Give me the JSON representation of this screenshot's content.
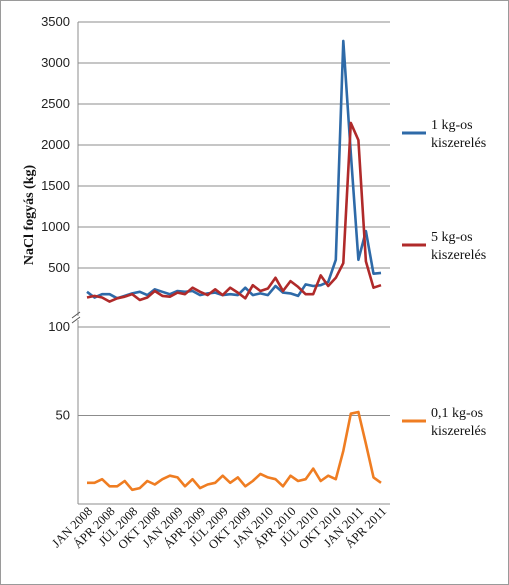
{
  "chart_data": {
    "type": "line",
    "ylabel": "NaCl fogyás (kg)",
    "categories": [
      "JAN 2008",
      "FEB 2008",
      "MÁR 2008",
      "ÁPR 2008",
      "MÁJ 2008",
      "JÚN 2008",
      "JÚL 2008",
      "AUG 2008",
      "SZEP 2008",
      "OKT 2008",
      "NOV 2008",
      "DEC 2008",
      "JAN 2009",
      "FEB 2009",
      "MÁR 2009",
      "ÁPR 2009",
      "MÁJ 2009",
      "JÚN 2009",
      "JÚL 2009",
      "AUG 2009",
      "SZEP 2009",
      "OKT 2009",
      "NOV 2009",
      "DEC 2009",
      "JAN 2010",
      "FEB 2010",
      "MÁR 2010",
      "ÁPR 2010",
      "MÁJ 2010",
      "JÚN 2010",
      "JÚL 2010",
      "AUG 2010",
      "SZEP 2010",
      "OKT 2010",
      "NOV 2010",
      "DEC 2010",
      "JAN 2011",
      "FEB 2011",
      "MÁR 2011",
      "ÁPR 2011"
    ],
    "xtick_labels": [
      "JAN 2008",
      "ÁPR 2008",
      "JÚL 2008",
      "OKT 2008",
      "JAN 2009",
      "ÁPR 2009",
      "JÚL 2009",
      "OKT 2009",
      "JAN 2010",
      "ÁPR 2010",
      "JÚL 2010",
      "OKT 2010",
      "JAN 2011",
      "ÁPR 2011"
    ],
    "panels": [
      {
        "ylim": [
          0,
          3500
        ],
        "yticks": [
          "500",
          "1000",
          "1500",
          "2000",
          "2500",
          "3000",
          "3500"
        ],
        "series": [
          {
            "name": "1 kg-os kiszerelés",
            "color": "#2e6aa8",
            "values": [
              210,
              140,
              180,
              180,
              130,
              160,
              190,
              210,
              170,
              240,
              210,
              180,
              220,
              210,
              220,
              170,
              190,
              200,
              170,
              180,
              170,
              260,
              170,
              190,
              170,
              280,
              200,
              190,
              160,
              300,
              280,
              290,
              330,
              600,
              3270,
              1900,
              600,
              950,
              430,
              440
            ]
          },
          {
            "name": "5 kg-os kiszerelés",
            "color": "#b02a2a",
            "values": [
              140,
              160,
              140,
              90,
              130,
              150,
              180,
              110,
              140,
              220,
              160,
              150,
              200,
              180,
              260,
              210,
              170,
              240,
              170,
              260,
              200,
              130,
              290,
              220,
              250,
              380,
              220,
              340,
              270,
              180,
              180,
              410,
              280,
              380,
              560,
              2270,
              2060,
              580,
              260,
              290
            ]
          }
        ]
      },
      {
        "ylim": [
          0,
          100
        ],
        "yticks": [
          "50",
          "100"
        ],
        "series": [
          {
            "name": "0,1 kg-os kiszerelés",
            "color": "#ef7d22",
            "values": [
              12,
              12,
              14,
              10,
              10,
              13,
              8,
              9,
              13,
              11,
              14,
              16,
              15,
              10,
              14,
              9,
              11,
              12,
              16,
              12,
              15,
              10,
              13,
              17,
              15,
              14,
              10,
              16,
              13,
              14,
              20,
              13,
              16,
              14,
              30,
              51,
              52,
              34,
              15,
              12
            ]
          }
        ]
      }
    ],
    "legend_position": "right"
  }
}
